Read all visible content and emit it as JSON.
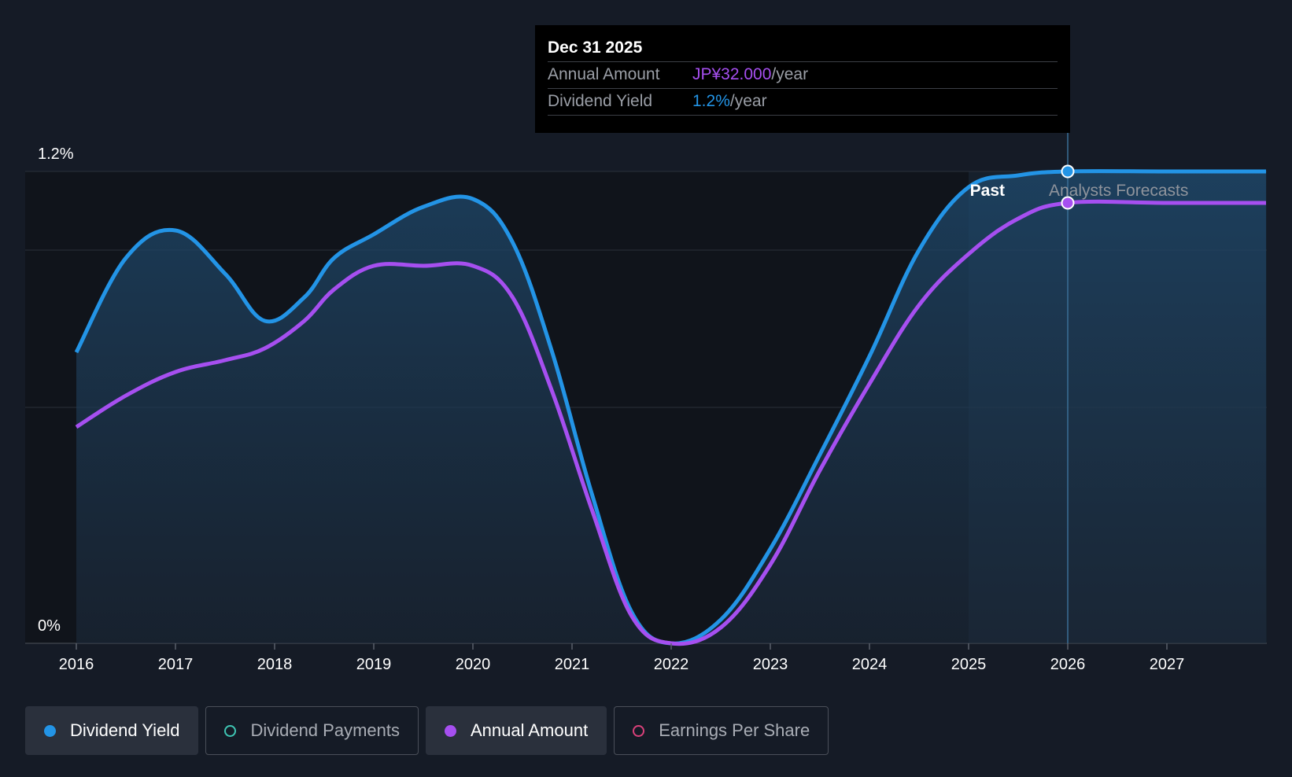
{
  "chart_data": {
    "type": "line",
    "title": "",
    "x": [
      2016,
      2016.5,
      2017,
      2017.5,
      2017.9,
      2018.3,
      2018.6,
      2019,
      2019.5,
      2020,
      2020.4,
      2020.8,
      2021.2,
      2021.6,
      2022,
      2022.5,
      2023,
      2023.5,
      2024,
      2024.5,
      2025,
      2025.5,
      2026,
      2027,
      2028
    ],
    "series": [
      {
        "name": "Dividend Yield",
        "color": "#2394e6",
        "values": [
          0.74,
          0.98,
          1.05,
          0.94,
          0.82,
          0.88,
          0.98,
          1.04,
          1.11,
          1.13,
          1.02,
          0.74,
          0.38,
          0.08,
          0.0,
          0.06,
          0.24,
          0.48,
          0.73,
          1.0,
          1.16,
          1.19,
          1.2,
          1.2,
          1.2
        ]
      },
      {
        "name": "Annual Amount",
        "color": "#a64ff0",
        "values": [
          0.55,
          0.63,
          0.69,
          0.72,
          0.75,
          0.82,
          0.9,
          0.96,
          0.96,
          0.96,
          0.88,
          0.64,
          0.34,
          0.07,
          0.0,
          0.04,
          0.2,
          0.44,
          0.66,
          0.86,
          0.99,
          1.08,
          1.12,
          1.12,
          1.12
        ]
      }
    ],
    "xlim": [
      2016,
      2028
    ],
    "ylim": [
      0,
      1.2
    ],
    "y_tick_labels": [
      "0%",
      "1.2%"
    ],
    "x_tick_labels": [
      "2016",
      "2017",
      "2018",
      "2019",
      "2020",
      "2021",
      "2022",
      "2023",
      "2024",
      "2025",
      "2026",
      "2027"
    ],
    "forecast_start": 2025,
    "highlight_x": 2026,
    "past_label": "Past",
    "forecast_label": "Analysts Forecasts",
    "grid": true
  },
  "tooltip": {
    "date": "Dec 31 2025",
    "rows": [
      {
        "label": "Annual Amount",
        "value": "JP¥32.000",
        "unit": "/year"
      },
      {
        "label": "Dividend Yield",
        "value": "1.2%",
        "unit": "/year"
      }
    ]
  },
  "legend": [
    {
      "label": "Dividend Yield",
      "color": "#2394e6",
      "active": true
    },
    {
      "label": "Dividend Payments",
      "color": "#3fc5b3",
      "active": false
    },
    {
      "label": "Annual Amount",
      "color": "#a64ff0",
      "active": true
    },
    {
      "label": "Earnings Per Share",
      "color": "#d9417a",
      "active": false
    }
  ]
}
